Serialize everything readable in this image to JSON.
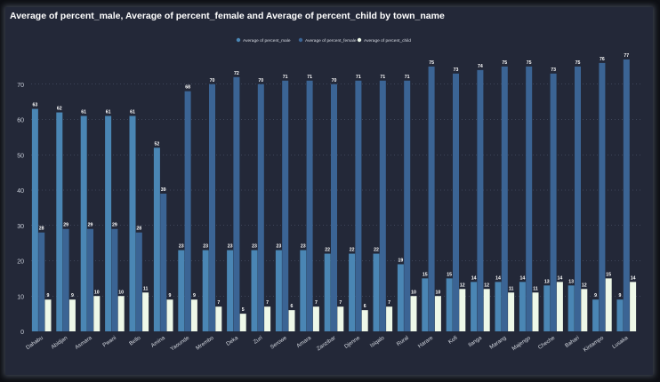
{
  "chart_data": {
    "type": "bar",
    "title": "Average of percent_male, Average of percent_female and Average of percent_child by town_name",
    "legend_position": "top-center",
    "grid": true,
    "ylim": [
      0,
      80
    ],
    "y_ticks": [
      0,
      10,
      20,
      30,
      40,
      50,
      60,
      70
    ],
    "categories": [
      "Dahabu",
      "Abidjan",
      "Asmara",
      "Pwani",
      "Bello",
      "Amina",
      "Yaounde",
      "Mrembo",
      "Deka",
      "Zuri",
      "Serowe",
      "Amara",
      "Zanzibar",
      "Djenne",
      "Isiqalo",
      "Rural",
      "Harare",
      "Kofi",
      "Ilanga",
      "Marang",
      "Majengo",
      "Cheche",
      "Bahari",
      "Kintampo",
      "Lusaka"
    ],
    "series": [
      {
        "name": "Average of percent_male",
        "color": "#4a86b4",
        "values": [
          63,
          62,
          61,
          61,
          61,
          52,
          23,
          23,
          23,
          23,
          23,
          23,
          22,
          22,
          22,
          19,
          15,
          15,
          14,
          14,
          14,
          13,
          13,
          9,
          9
        ],
        "labels": [
          "63",
          "62",
          "61",
          "61",
          "61",
          "52",
          "23",
          "23",
          "23",
          "23",
          "23",
          "23",
          "22",
          "22",
          "22",
          "19",
          "15",
          "15",
          "14",
          "14",
          "14",
          "13",
          "13",
          "9",
          "9"
        ]
      },
      {
        "name": "Average of percent_female",
        "color": "#3b6494",
        "values": [
          28,
          29,
          29,
          29,
          28,
          39,
          68,
          70,
          72,
          70,
          71,
          71,
          70,
          71,
          71,
          71,
          75,
          73,
          74,
          75,
          75,
          73,
          75,
          76,
          77
        ],
        "labels": [
          "28",
          "29",
          "29",
          "29",
          "28",
          "39",
          "68",
          "70",
          "72",
          "70",
          "71",
          "71",
          "70",
          "71",
          "71",
          "71",
          "75",
          "73",
          "74",
          "75",
          "75",
          "73",
          "75",
          "76",
          "77"
        ]
      },
      {
        "name": "Average of percent_child",
        "color": "#eef8e8",
        "values": [
          9,
          9,
          10,
          10,
          11,
          9,
          9,
          7,
          5,
          7,
          6,
          7,
          7,
          6,
          7,
          10,
          10,
          12,
          12,
          11,
          11,
          14,
          12,
          15,
          14
        ],
        "labels": [
          "9",
          "9",
          "10",
          "10",
          "11",
          "9",
          "9",
          "7",
          "5",
          "7",
          "6",
          "7",
          "7",
          "6",
          "7",
          "10",
          "10",
          "12",
          "12",
          "11",
          "11",
          "14",
          "12",
          "15",
          "14"
        ]
      }
    ]
  }
}
